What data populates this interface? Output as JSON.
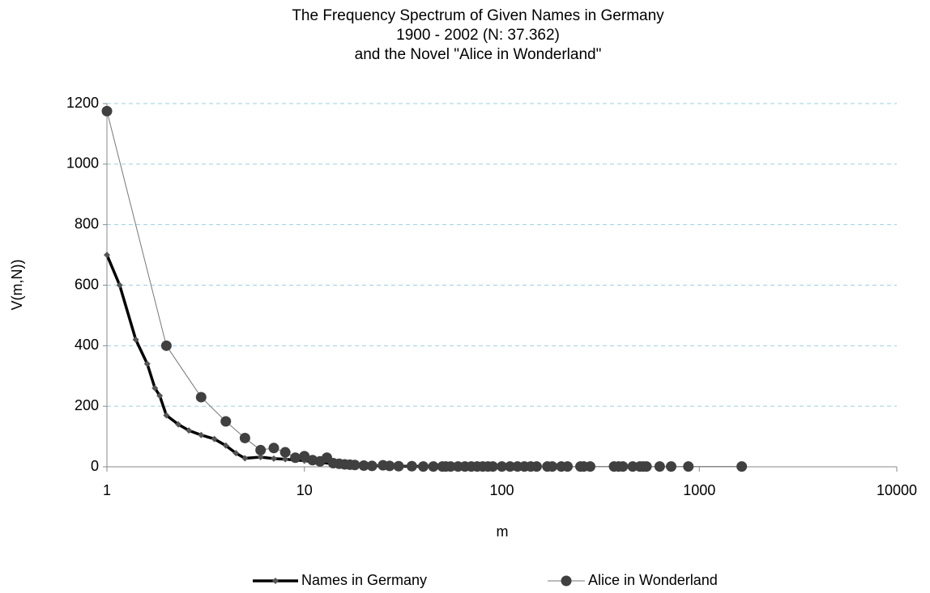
{
  "chart_data": {
    "type": "line",
    "title": [
      "The Frequency Spectrum of Given Names in Germany",
      "1900 - 2002 (N: 37.362)",
      "and the Novel \"Alice in Wonderland\""
    ],
    "x_label": "m",
    "y_label": "V(m,N))",
    "x_scale": "log",
    "xlim": [
      1,
      10000
    ],
    "xticks": [
      1,
      10,
      100,
      1000,
      10000
    ],
    "ylim": [
      0,
      1200
    ],
    "yticks": [
      0,
      200,
      400,
      600,
      800,
      1000,
      1200
    ],
    "grid": true,
    "legend": "bottom",
    "series": [
      {
        "name": "Names in Germany",
        "color": "#000000",
        "marker": "diamond",
        "line_width": 3.5,
        "x": [
          1,
          1.16,
          1.4,
          1.6,
          1.75,
          1.85,
          2,
          2.3,
          2.6,
          3,
          3.5,
          4,
          4.5,
          5,
          6,
          7,
          8,
          10,
          15,
          20,
          30,
          50,
          100
        ],
        "values": [
          700,
          600,
          420,
          340,
          260,
          235,
          170,
          140,
          120,
          105,
          92,
          70,
          45,
          28,
          32,
          27,
          25,
          20,
          8,
          4,
          2,
          1,
          0.5
        ]
      },
      {
        "name": "Alice in Wonderland",
        "color": "#404040",
        "marker": "circle",
        "line_width": 1,
        "x": [
          1,
          2,
          3,
          4,
          5,
          6,
          7,
          8,
          9,
          10,
          11,
          12,
          13,
          14,
          15,
          16,
          17,
          18,
          20,
          22,
          25,
          27,
          30,
          35,
          40,
          45,
          50,
          52,
          55,
          60,
          65,
          70,
          75,
          80,
          85,
          90,
          100,
          110,
          120,
          130,
          140,
          150,
          170,
          180,
          200,
          215,
          250,
          260,
          280,
          370,
          390,
          410,
          460,
          500,
          520,
          540,
          630,
          720,
          880,
          1640
        ],
        "values": [
          1175,
          400,
          230,
          150,
          95,
          55,
          62,
          48,
          30,
          35,
          22,
          18,
          30,
          12,
          10,
          8,
          7,
          6,
          4,
          3,
          5,
          3,
          2,
          2,
          1,
          1,
          1,
          1,
          1,
          1,
          1,
          1,
          1,
          1,
          1,
          1,
          1,
          1,
          1,
          1,
          1,
          1,
          1,
          1,
          1,
          1,
          1,
          1,
          1,
          1,
          1,
          1,
          1,
          1,
          1,
          1,
          1,
          1,
          1,
          1
        ]
      }
    ]
  }
}
